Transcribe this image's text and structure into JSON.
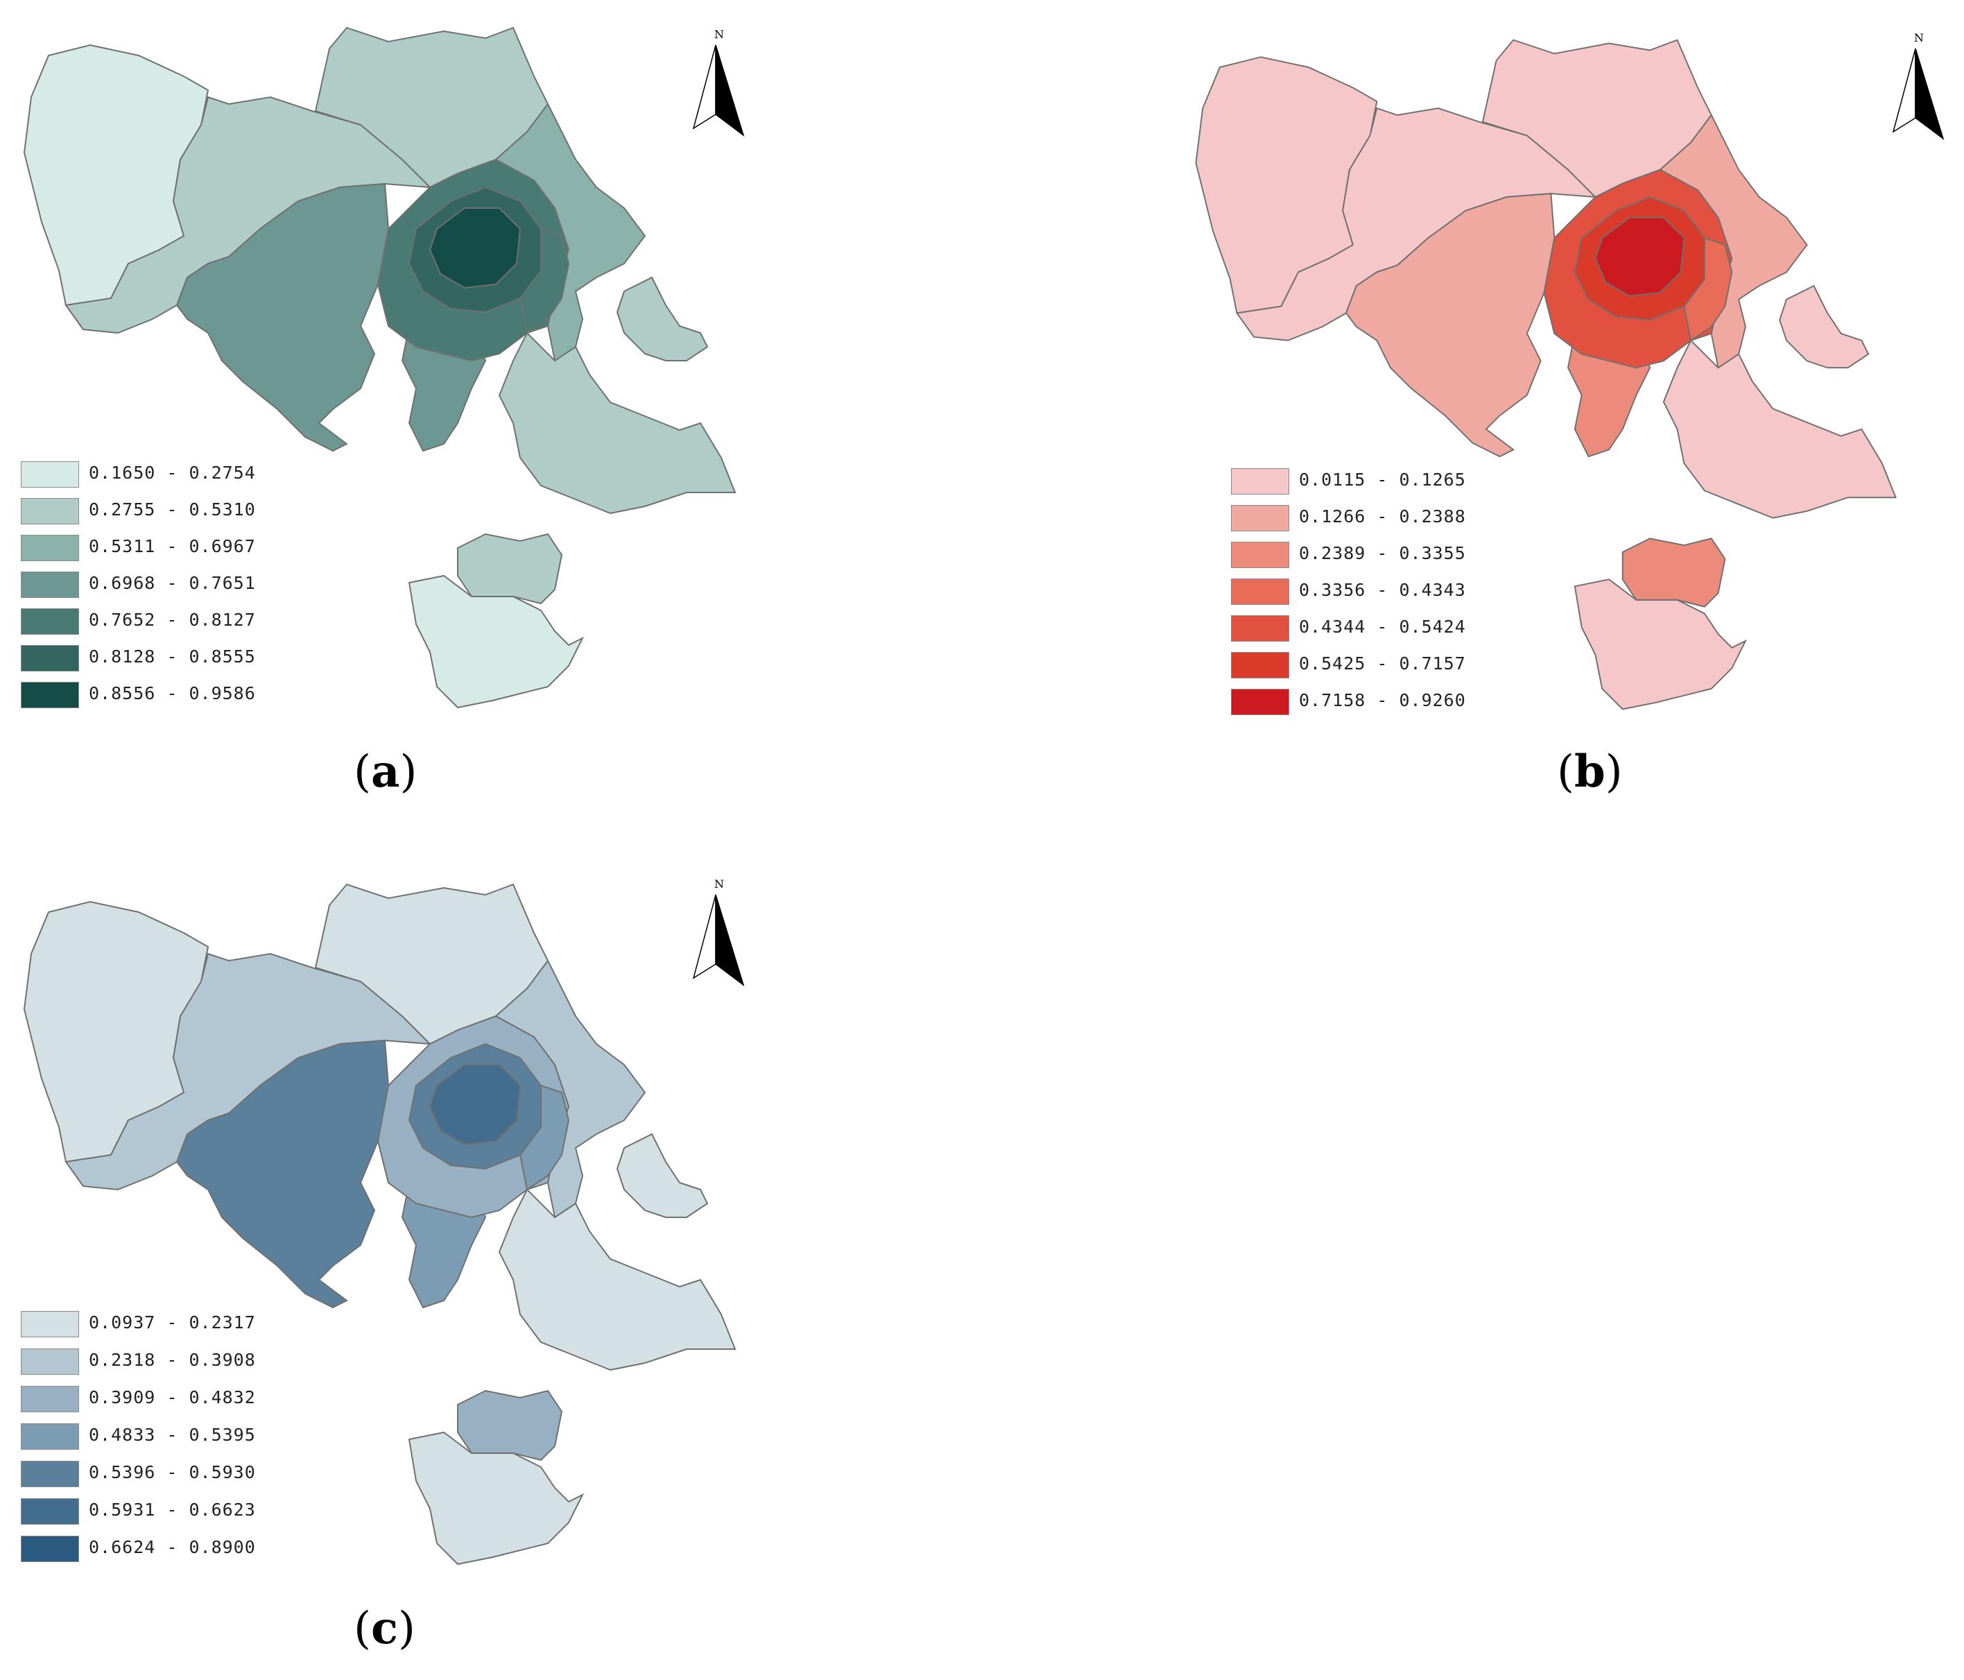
{
  "north_label": "N",
  "panels": {
    "a": {
      "caption_open": "(",
      "caption_letter": "a",
      "caption_close": ")",
      "palette": [
        "#d6ebe6",
        "#afcdc6",
        "#8cb2ac",
        "#6c9792",
        "#4a7a74",
        "#336660",
        "#144d48"
      ],
      "legend": [
        "0.1650 - 0.2754",
        "0.2755 - 0.5310",
        "0.5311 - 0.6967",
        "0.6968 - 0.7651",
        "0.7652 - 0.8127",
        "0.8128 - 0.8555",
        "0.8556 - 0.9586"
      ]
    },
    "b": {
      "caption_open": "(",
      "caption_letter": "b",
      "caption_close": ")",
      "palette": [
        "#f6c7c8",
        "#f0a9a0",
        "#ec8b7b",
        "#e86c58",
        "#e2513f",
        "#d93a2a",
        "#cc1a20"
      ],
      "legend": [
        "0.0115 - 0.1265",
        "0.1266 - 0.2388",
        "0.2389 - 0.3355",
        "0.3356 - 0.4343",
        "0.4344 - 0.5424",
        "0.5425 - 0.7157",
        "0.7158 - 0.9260"
      ]
    },
    "c": {
      "caption_open": "(",
      "caption_letter": "c",
      "caption_close": ")",
      "palette": [
        "#d4e1e4",
        "#b2c7d1",
        "#98b1c2",
        "#7c9cb3",
        "#5b809c",
        "#436d8e",
        "#2b5a80"
      ],
      "legend": [
        "0.0937 - 0.2317",
        "0.2318 - 0.3908",
        "0.3909 - 0.4832",
        "0.4833 - 0.5395",
        "0.5396 - 0.5930",
        "0.5931 - 0.6623",
        "0.6624 - 0.8900"
      ]
    }
  }
}
